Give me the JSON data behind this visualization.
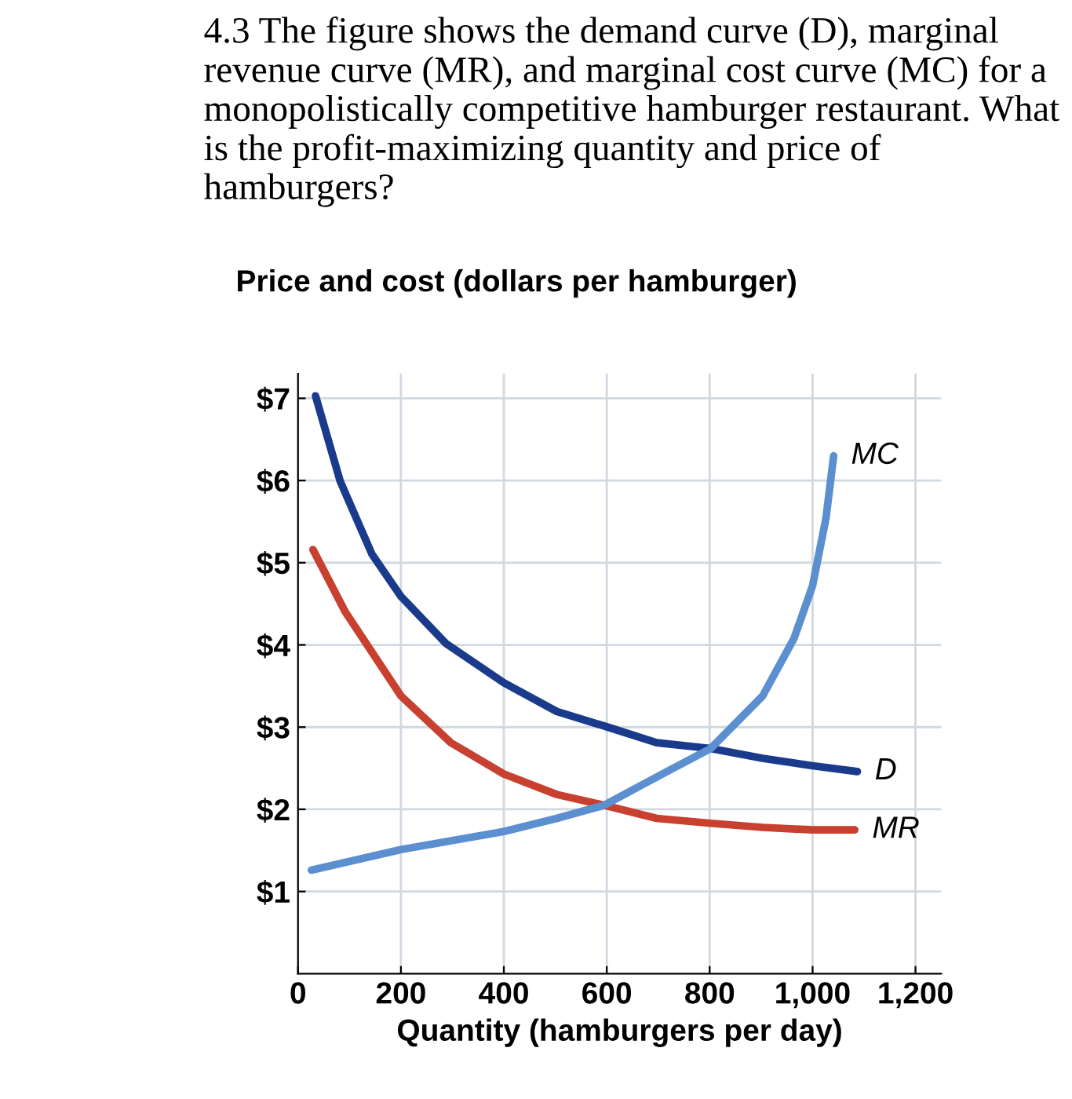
{
  "chart_data": {
    "type": "line",
    "title": "4.3 The figure shows the demand curve (D), marginal revenue curve (MR), and marginal cost curve (MC) for a monopolistically competitive hamburger restaurant. What is the profit-maximizing quantity and price of hamburgers?",
    "ylabel": "Price and cost (dollars per hamburger)",
    "xlabel": "Quantity (hamburgers per day)",
    "xlim": [
      0,
      1250
    ],
    "ylim": [
      0,
      7.3
    ],
    "xticks": [
      0,
      200,
      400,
      600,
      800,
      {
        "value": 1000,
        "label": "1,000"
      },
      {
        "value": 1200,
        "label": "1,200"
      }
    ],
    "yticks": [
      {
        "value": 1,
        "label": "$1"
      },
      {
        "value": 2,
        "label": "$2"
      },
      {
        "value": 3,
        "label": "$3"
      },
      {
        "value": 4,
        "label": "$4"
      },
      {
        "value": 5,
        "label": "$5"
      },
      {
        "value": 6,
        "label": "$6"
      },
      {
        "value": 7,
        "label": "$7"
      }
    ],
    "grid": true,
    "legend": false,
    "marker": "none",
    "line_style": "solid",
    "series": [
      {
        "name": "D",
        "color": "#1a3a8c",
        "x": [
          34,
          82,
          144,
          200,
          287,
          400,
          503,
          602,
          697,
          802,
          903,
          1000,
          1087
        ],
        "values": [
          7.03,
          5.99,
          5.1,
          4.59,
          4.02,
          3.54,
          3.19,
          3.0,
          2.81,
          2.74,
          2.62,
          2.53,
          2.46
        ]
      },
      {
        "name": "MR",
        "color": "#c8402f",
        "x": [
          29,
          92,
          200,
          297,
          400,
          503,
          595,
          697,
          802,
          903,
          1000,
          1082
        ],
        "values": [
          5.16,
          4.4,
          3.38,
          2.81,
          2.43,
          2.18,
          2.05,
          1.89,
          1.83,
          1.78,
          1.75,
          1.75
        ]
      },
      {
        "name": "MC",
        "color": "#5b8fd0",
        "x": [
          26,
          200,
          400,
          503,
          595,
          708,
          802,
          903,
          964,
          1000,
          1026,
          1041
        ],
        "values": [
          1.26,
          1.51,
          1.73,
          1.89,
          2.05,
          2.43,
          2.74,
          3.38,
          4.08,
          4.72,
          5.54,
          6.3
        ]
      }
    ]
  }
}
